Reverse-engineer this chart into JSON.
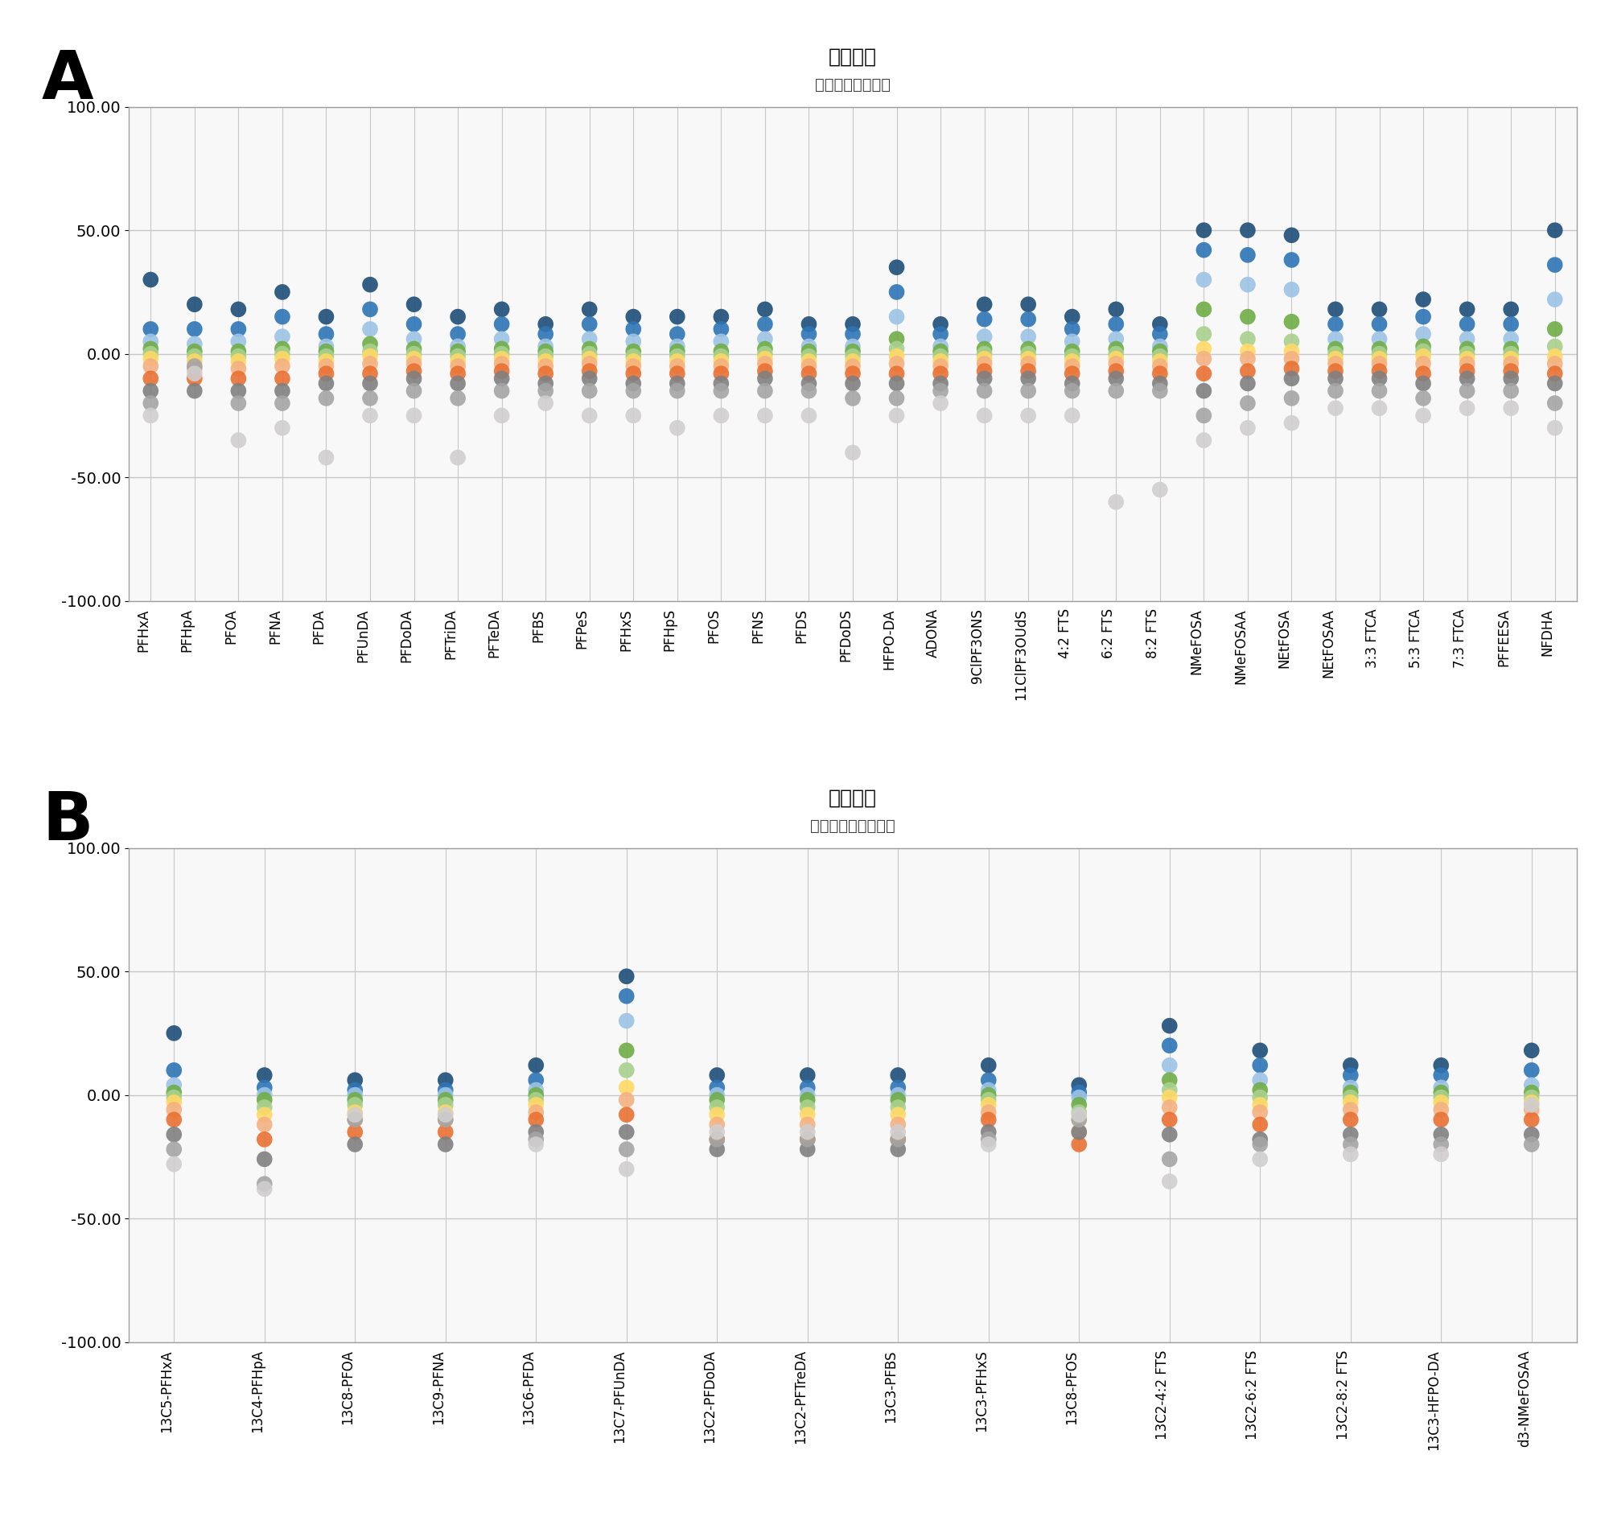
{
  "panel_A_title": "イオン比",
  "panel_A_subtitle": "ターゲット分析種",
  "panel_B_title": "イオン比",
  "panel_B_subtitle": "抽出された内部標準",
  "label_A": "A",
  "label_B": "B",
  "ylim": [
    -100,
    100
  ],
  "yticks": [
    -100,
    -50,
    0,
    50,
    100
  ],
  "ytick_labels": [
    "-100.00",
    "-50.00",
    "0.00",
    "50.00",
    "100.00"
  ],
  "background_color": "#ffffff",
  "panel_border_color": "#c0c0c0",
  "grid_color": "#d0d0d0",
  "compounds_A": [
    "PFHxA",
    "PFHpA",
    "PFOA",
    "PFNA",
    "PFDA",
    "PFUnDA",
    "PFDoDA",
    "PFTriDA",
    "PFTeDA",
    "PFBS",
    "PFPeS",
    "PFHxS",
    "PFHpS",
    "PFOS",
    "PFNS",
    "PFDS",
    "PFDoDS",
    "HFPO-DA",
    "ADONA",
    "9ClPF3ONS",
    "11ClPF3OUdS",
    "4:2 FTS",
    "6:2 FTS",
    "8:2 FTS",
    "NMeFOSA",
    "NMeFOSAA",
    "NEtFOSA",
    "NEtFOSAA",
    "3:3 FTCA",
    "5:3 FTCA",
    "7:3 FTCA",
    "PFFEESA",
    "NFDHA"
  ],
  "compounds_B": [
    "13C5-PFHxA",
    "13C4-PFHpA",
    "13C8-PFOA",
    "13C9-PFNA",
    "13C6-PFDA",
    "13C7-PFUnDA",
    "13C2-PFDoDA",
    "13C2-PFTreDA",
    "13C3-PFBS",
    "13C3-PFHxS",
    "13C8-PFOS",
    "13C2-4:2 FTS",
    "13C2-6:2 FTS",
    "13C2-8:2 FTS",
    "13C3-HFPO-DA",
    "d3-NMeFOSAA"
  ],
  "colors": [
    "#1f4e79",
    "#2e75b6",
    "#9dc3e6",
    "#70ad47",
    "#a9d18e",
    "#ffd966",
    "#f4b183",
    "#e97132",
    "#767676",
    "#a5a5a5",
    "#d0cece"
  ],
  "dot_data_A": {
    "PFHxA": [
      30,
      22,
      10,
      5,
      2,
      -2,
      -5,
      -8,
      -12,
      -18,
      -25
    ],
    "PFHpA": [
      20,
      15,
      8,
      3,
      1,
      -1,
      -4,
      -7,
      -10,
      -15,
      -5
    ],
    "PFOA": [
      18,
      12,
      7,
      2,
      0,
      -2,
      -5,
      -8,
      -12,
      -20,
      -35
    ],
    "PFNA": [
      25,
      18,
      10,
      4,
      1,
      -1,
      -4,
      -8,
      -12,
      -18,
      -30
    ],
    "PFDA": [
      15,
      10,
      5,
      2,
      0,
      -2,
      -4,
      -7,
      -10,
      -15,
      -42
    ],
    "PFUnDA": [
      30,
      22,
      12,
      5,
      2,
      -1,
      -4,
      -8,
      -12,
      -18,
      -25
    ],
    "PFDoDA": [
      20,
      15,
      8,
      3,
      1,
      -1,
      -4,
      -7,
      -10,
      -15,
      -25
    ],
    "PFTriDA": [
      15,
      10,
      5,
      2,
      0,
      -2,
      -4,
      -7,
      -10,
      -15,
      -42
    ],
    "PFTeDA": [
      20,
      15,
      8,
      3,
      1,
      -1,
      -4,
      -7,
      -10,
      -15,
      -25
    ],
    "PFBS": [
      15,
      10,
      5,
      2,
      0,
      -2,
      -4,
      -7,
      -10,
      -15,
      -20
    ],
    "PFPeS": [
      20,
      15,
      8,
      3,
      1,
      -1,
      -4,
      -7,
      -10,
      -15,
      -25
    ],
    "PFHxS": [
      18,
      12,
      6,
      2,
      0,
      -2,
      -4,
      -7,
      -10,
      -15,
      -25
    ],
    "PFHpS": [
      15,
      10,
      5,
      2,
      0,
      -2,
      -4,
      -7,
      -10,
      -15,
      -25
    ],
    "PFOS": [
      18,
      12,
      6,
      2,
      0,
      -2,
      -4,
      -7,
      -10,
      -15,
      -25
    ],
    "PFNS": [
      20,
      15,
      8,
      3,
      1,
      -1,
      -4,
      -7,
      -10,
      -15,
      -25
    ],
    "PFDS": [
      15,
      10,
      5,
      2,
      0,
      -2,
      -4,
      -7,
      -10,
      -15,
      -25
    ],
    "PFDoDS": [
      15,
      10,
      5,
      2,
      0,
      -2,
      -4,
      -7,
      -10,
      -15,
      -40
    ],
    "HFPO-DA": [
      35,
      28,
      18,
      8,
      3,
      -1,
      -4,
      -8,
      -12,
      -18,
      -25
    ],
    "ADONA": [
      15,
      10,
      5,
      2,
      0,
      -2,
      -4,
      -7,
      -10,
      -15,
      -20
    ],
    "9ClPF3ONS": [
      20,
      15,
      8,
      3,
      1,
      -1,
      -4,
      -7,
      -10,
      -15,
      -25
    ],
    "11ClPF3OUdS": [
      22,
      16,
      8,
      3,
      1,
      -1,
      -4,
      -7,
      -10,
      -15,
      -25
    ],
    "4:2 FTS": [
      18,
      12,
      6,
      2,
      0,
      -2,
      -4,
      -7,
      -10,
      -15,
      -25
    ],
    "6:2 FTS": [
      20,
      14,
      7,
      2,
      0,
      -2,
      -4,
      -7,
      -10,
      -15,
      -60
    ],
    "8:2 FTS": [
      15,
      10,
      5,
      2,
      0,
      -2,
      -4,
      -7,
      -10,
      -15,
      -55
    ],
    "NMeFOSA": [
      50,
      44,
      35,
      22,
      10,
      3,
      -2,
      -8,
      -15,
      -25,
      -35
    ],
    "NMeFOSAA": [
      50,
      42,
      30,
      18,
      8,
      2,
      -2,
      -7,
      -12,
      -20,
      -30
    ],
    "NEtFOSA": [
      48,
      40,
      28,
      15,
      6,
      1,
      -2,
      -6,
      -10,
      -18,
      -28
    ],
    "NEtFOSAA": [
      20,
      14,
      7,
      2,
      0,
      -2,
      -4,
      -7,
      -10,
      -16,
      -22
    ],
    "3:3 FTCA": [
      20,
      14,
      7,
      2,
      0,
      -2,
      -4,
      -7,
      -10,
      -16,
      -22
    ],
    "5:3 FTCA": [
      25,
      18,
      10,
      4,
      1,
      -1,
      -4,
      -8,
      -12,
      -18,
      -25
    ],
    "7:3 FTCA": [
      20,
      14,
      7,
      2,
      0,
      -2,
      -4,
      -7,
      -10,
      -16,
      -22
    ],
    "PFFEESA": [
      20,
      14,
      7,
      2,
      0,
      -2,
      -4,
      -7,
      -10,
      -16,
      -22
    ],
    "NFDHA": [
      50,
      38,
      25,
      12,
      4,
      -1,
      -4,
      -8,
      -12,
      -20,
      -30
    ]
  },
  "dot_data_B": {
    "13C5-PFHxA": [
      25,
      12,
      5,
      2,
      0,
      -2,
      -5,
      -8,
      -12,
      -20,
      -28
    ],
    "13C4-PFHpA": [
      10,
      5,
      2,
      0,
      -2,
      -5,
      -8,
      -12,
      -18,
      -28,
      -38
    ],
    "13C8-PFOA": [
      8,
      4,
      1,
      -1,
      -3,
      -6,
      -9,
      -13,
      -18,
      -22,
      -10
    ],
    "13C9-PFNA": [
      8,
      4,
      1,
      -1,
      -3,
      -6,
      -9,
      -13,
      -18,
      -22,
      -10
    ],
    "13C6-PFDA": [
      15,
      8,
      3,
      1,
      -1,
      -3,
      -6,
      -9,
      -13,
      -18,
      -22
    ],
    "13C7-PFUnDA": [
      48,
      40,
      30,
      20,
      12,
      5,
      -2,
      -8,
      -15,
      -22,
      -30
    ],
    "13C2-PFDoDA": [
      10,
      5,
      2,
      0,
      -2,
      -5,
      -8,
      -12,
      -18,
      -25,
      -18
    ],
    "13C2-PFTreDA": [
      10,
      5,
      2,
      0,
      -2,
      -5,
      -8,
      -12,
      -18,
      -25,
      -18
    ],
    "13C3-PFBS": [
      10,
      5,
      2,
      0,
      -2,
      -5,
      -8,
      -12,
      -18,
      -25,
      -18
    ],
    "13C3-PFHxS": [
      15,
      8,
      3,
      1,
      -1,
      -3,
      -6,
      -9,
      -13,
      -18,
      -22
    ],
    "13C8-PFOS": [
      5,
      2,
      0,
      -2,
      -5,
      -8,
      -12,
      -18,
      -25,
      -18,
      -10
    ],
    "13C2-4:2 FTS": [
      30,
      22,
      14,
      8,
      3,
      -1,
      -5,
      -10,
      -18,
      -28,
      -35
    ],
    "13C2-6:2 FTS": [
      20,
      14,
      8,
      3,
      0,
      -3,
      -6,
      -10,
      -16,
      -22,
      -28
    ],
    "13C2-8:2 FTS": [
      15,
      10,
      5,
      2,
      0,
      -2,
      -5,
      -9,
      -14,
      -20,
      -25
    ],
    "13C3-HFPO-DA": [
      15,
      10,
      5,
      2,
      0,
      -2,
      -5,
      -9,
      -14,
      -20,
      -25
    ],
    "d3-NMeFOSAA": [
      20,
      14,
      7,
      2,
      0,
      -2,
      -5,
      -9,
      -14,
      -20,
      -5
    ]
  }
}
